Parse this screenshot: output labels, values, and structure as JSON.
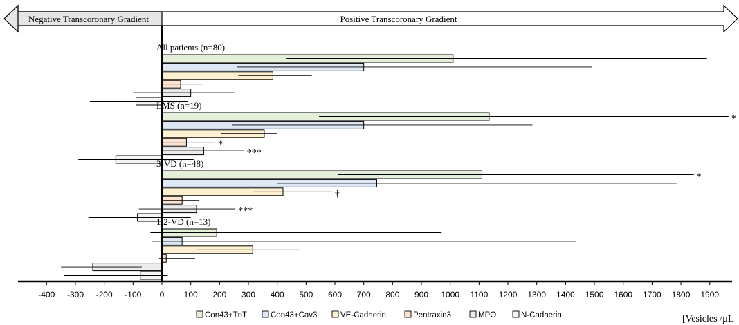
{
  "chart_data": {
    "type": "bar",
    "orientation": "horizontal",
    "x_ticks": [
      -400,
      -300,
      -200,
      -100,
      0,
      100,
      200,
      300,
      400,
      500,
      600,
      700,
      800,
      900,
      1000,
      1100,
      1200,
      1300,
      1400,
      1500,
      1600,
      1700,
      1800,
      1900
    ],
    "xlim": [
      -420,
      1990
    ],
    "x_unit_label": "[Vesicles /µL",
    "arrows": {
      "negative_label": "Negative Transcoronary Gradient",
      "positive_label": "Positive Transcoronary Gradient"
    },
    "series_names": [
      "Con43+TnT",
      "Con43+Cav3",
      "VE-Cadherin",
      "Pentraxin3",
      "MPO",
      "N-Cadherin"
    ],
    "series_colors": [
      "#e4efd9",
      "#dde8f4",
      "#fdf0d0",
      "#fbe4d2",
      "#ececec",
      "#f4f4f4"
    ],
    "legend_position": "bottom",
    "groups": [
      {
        "label": "All patients (n=80)",
        "values": [
          1010,
          700,
          385,
          65,
          100,
          -90
        ],
        "errors": [
          [
            430,
            1890
          ],
          [
            260,
            1490
          ],
          [
            265,
            520
          ],
          [
            0,
            140
          ],
          [
            -100,
            250
          ],
          [
            -250,
            90
          ]
        ],
        "marks": [
          "",
          "",
          "",
          "",
          "",
          ""
        ]
      },
      {
        "label": "LMS (n=19)",
        "values": [
          1135,
          700,
          355,
          85,
          145,
          -160
        ],
        "errors": [
          [
            545,
            1965
          ],
          [
            245,
            1285
          ],
          [
            205,
            400
          ],
          [
            0,
            185
          ],
          [
            5,
            285
          ],
          [
            -290,
            110
          ]
        ],
        "marks": [
          "*",
          "",
          "",
          "*",
          "***",
          ""
        ]
      },
      {
        "label": "3-VD (n=48)",
        "values": [
          1110,
          745,
          420,
          70,
          120,
          -85
        ],
        "errors": [
          [
            610,
            1845
          ],
          [
            400,
            1785
          ],
          [
            315,
            590
          ],
          [
            5,
            130
          ],
          [
            -80,
            255
          ],
          [
            -255,
            100
          ]
        ],
        "marks": [
          "*",
          "",
          "†",
          "",
          "***",
          ""
        ]
      },
      {
        "label": "1/2-VD (n=13)",
        "values": [
          190,
          70,
          315,
          15,
          -240,
          -75
        ],
        "errors": [
          [
            -40,
            970
          ],
          [
            -35,
            1435
          ],
          [
            120,
            480
          ],
          [
            -10,
            115
          ],
          [
            -350,
            -70
          ],
          [
            -340,
            20
          ]
        ],
        "marks": [
          "",
          "",
          "",
          "",
          "",
          ""
        ]
      }
    ]
  }
}
